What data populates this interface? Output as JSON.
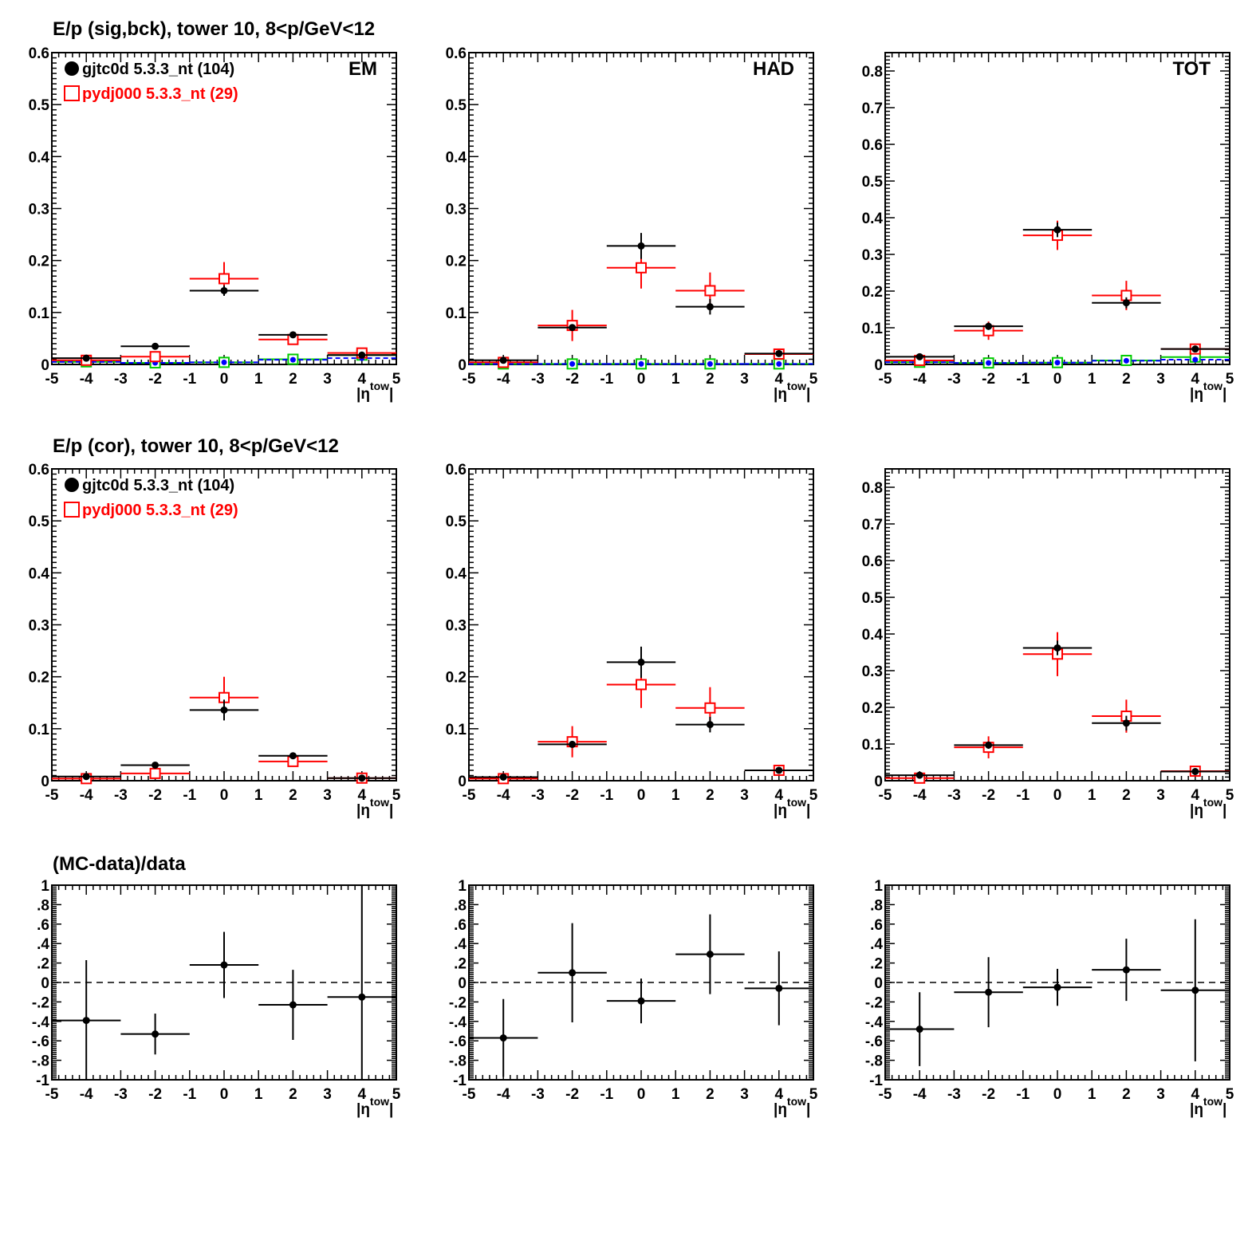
{
  "rows": [
    {
      "title": "E/p (sig,bck), tower 10,  8<p/GeV<12"
    },
    {
      "title": "E/p (cor), tower 10,  8<p/GeV<12"
    },
    {
      "title": "(MC-data)/data"
    }
  ],
  "legend": [
    {
      "label": "gjtc0d 5.3.3_nt (104)",
      "color": "#000000",
      "marker": "filled-circle"
    },
    {
      "label": "pydj000 5.3.3_nt (29)",
      "color": "#ff0000",
      "marker": "open-square"
    }
  ],
  "x_axis_label": {
    "base": "|η",
    "sup": "tow",
    "close": "|"
  },
  "chart_data": [
    {
      "type": "scatter",
      "row": 0,
      "col": 0,
      "label": "EM",
      "xlim": [
        -5,
        5
      ],
      "ylim": [
        0,
        0.6
      ],
      "x_ticks": [
        -5,
        -4,
        -3,
        -2,
        -1,
        0,
        1,
        2,
        3,
        4,
        5
      ],
      "y_ticks": [
        0,
        0.1,
        0.2,
        0.3,
        0.4,
        0.5,
        0.6
      ],
      "series": [
        {
          "name": "gjtc0d 5.3.3_nt (104)",
          "color": "#000000",
          "marker": "dot",
          "points": [
            {
              "x": -4,
              "y": 0.012,
              "e": 0.003
            },
            {
              "x": -2,
              "y": 0.035,
              "e": 0.003
            },
            {
              "x": 0,
              "y": 0.142,
              "e": 0.01
            },
            {
              "x": 2,
              "y": 0.057,
              "e": 0.005
            },
            {
              "x": 4,
              "y": 0.018,
              "e": 0.003
            }
          ]
        },
        {
          "name": "pydj000 5.3.3_nt (29)",
          "color": "#ff0000",
          "marker": "open-square",
          "points": [
            {
              "x": -4,
              "y": 0.008,
              "e": 0.004
            },
            {
              "x": -2,
              "y": 0.015,
              "e": 0.005
            },
            {
              "x": 0,
              "y": 0.165,
              "e": 0.032
            },
            {
              "x": 2,
              "y": 0.048,
              "e": 0.01
            },
            {
              "x": 4,
              "y": 0.022,
              "e": 0.006
            }
          ]
        },
        {
          "color": "#0000ff",
          "marker": "dot",
          "line": "dashed",
          "points": [
            {
              "x": -4,
              "y": 0.005,
              "e": 0
            },
            {
              "x": -2,
              "y": 0.003,
              "e": 0
            },
            {
              "x": 0,
              "y": 0.004,
              "e": 0
            },
            {
              "x": 2,
              "y": 0.009,
              "e": 0
            },
            {
              "x": 4,
              "y": 0.012,
              "e": 0
            }
          ]
        },
        {
          "color": "#00cc00",
          "marker": "open-square",
          "points": [
            {
              "x": -4,
              "y": 0.005,
              "e": 0
            },
            {
              "x": -2,
              "y": 0.003,
              "e": 0
            },
            {
              "x": 0,
              "y": 0.004,
              "e": 0
            },
            {
              "x": 2,
              "y": 0.01,
              "e": 0
            },
            {
              "x": 4,
              "y": 0.018,
              "e": 0
            }
          ]
        }
      ]
    },
    {
      "type": "scatter",
      "row": 0,
      "col": 1,
      "label": "HAD",
      "xlim": [
        -5,
        5
      ],
      "ylim": [
        0,
        0.6
      ],
      "x_ticks": [
        -5,
        -4,
        -3,
        -2,
        -1,
        0,
        1,
        2,
        3,
        4,
        5
      ],
      "y_ticks": [
        0,
        0.1,
        0.2,
        0.3,
        0.4,
        0.5,
        0.6
      ],
      "series": [
        {
          "name": "gjtc0d 5.3.3_nt (104)",
          "color": "#000000",
          "marker": "dot",
          "points": [
            {
              "x": -4,
              "y": 0.008,
              "e": 0.003
            },
            {
              "x": -2,
              "y": 0.071,
              "e": 0.006
            },
            {
              "x": 0,
              "y": 0.228,
              "e": 0.025
            },
            {
              "x": 2,
              "y": 0.111,
              "e": 0.015
            },
            {
              "x": 4,
              "y": 0.021,
              "e": 0.004
            }
          ]
        },
        {
          "name": "pydj000 5.3.3_nt (29)",
          "color": "#ff0000",
          "marker": "open-square",
          "points": [
            {
              "x": -4,
              "y": 0.004,
              "e": 0.003
            },
            {
              "x": -2,
              "y": 0.075,
              "e": 0.03
            },
            {
              "x": 0,
              "y": 0.186,
              "e": 0.04
            },
            {
              "x": 2,
              "y": 0.142,
              "e": 0.035
            },
            {
              "x": 4,
              "y": 0.02,
              "e": 0.005
            }
          ]
        },
        {
          "color": "#0000ff",
          "marker": "dot",
          "line": "dashed",
          "points": [
            {
              "x": -4,
              "y": 0.001,
              "e": 0
            },
            {
              "x": -2,
              "y": 0.001,
              "e": 0
            },
            {
              "x": 0,
              "y": 0.001,
              "e": 0
            },
            {
              "x": 2,
              "y": 0.001,
              "e": 0
            },
            {
              "x": 4,
              "y": 0.001,
              "e": 0
            }
          ]
        },
        {
          "color": "#00cc00",
          "marker": "open-square",
          "points": [
            {
              "x": -4,
              "y": 0.001,
              "e": 0
            },
            {
              "x": -2,
              "y": 0.001,
              "e": 0
            },
            {
              "x": 0,
              "y": 0.001,
              "e": 0
            },
            {
              "x": 2,
              "y": 0.001,
              "e": 0
            },
            {
              "x": 4,
              "y": 0.001,
              "e": 0
            }
          ]
        }
      ]
    },
    {
      "type": "scatter",
      "row": 0,
      "col": 2,
      "label": "TOT",
      "xlim": [
        -5,
        5
      ],
      "ylim": [
        0,
        0.85
      ],
      "x_ticks": [
        -5,
        -4,
        -3,
        -2,
        -1,
        0,
        1,
        2,
        3,
        4,
        5
      ],
      "y_ticks": [
        0,
        0.1,
        0.2,
        0.3,
        0.4,
        0.5,
        0.6,
        0.7,
        0.8
      ],
      "series": [
        {
          "name": "gjtc0d 5.3.3_nt (104)",
          "color": "#000000",
          "marker": "dot",
          "points": [
            {
              "x": -4,
              "y": 0.021,
              "e": 0.004
            },
            {
              "x": -2,
              "y": 0.104,
              "e": 0.01
            },
            {
              "x": 0,
              "y": 0.367,
              "e": 0.02
            },
            {
              "x": 2,
              "y": 0.168,
              "e": 0.015
            },
            {
              "x": 4,
              "y": 0.042,
              "e": 0.006
            }
          ]
        },
        {
          "name": "pydj000 5.3.3_nt (29)",
          "color": "#ff0000",
          "marker": "open-square",
          "points": [
            {
              "x": -4,
              "y": 0.011,
              "e": 0.005
            },
            {
              "x": -2,
              "y": 0.092,
              "e": 0.025
            },
            {
              "x": 0,
              "y": 0.352,
              "e": 0.04
            },
            {
              "x": 2,
              "y": 0.188,
              "e": 0.04
            },
            {
              "x": 4,
              "y": 0.042,
              "e": 0.01
            }
          ]
        },
        {
          "color": "#0000ff",
          "marker": "dot",
          "line": "dashed",
          "points": [
            {
              "x": -4,
              "y": 0.006,
              "e": 0
            },
            {
              "x": -2,
              "y": 0.004,
              "e": 0
            },
            {
              "x": 0,
              "y": 0.005,
              "e": 0
            },
            {
              "x": 2,
              "y": 0.01,
              "e": 0
            },
            {
              "x": 4,
              "y": 0.013,
              "e": 0
            }
          ]
        },
        {
          "color": "#00cc00",
          "marker": "open-square",
          "points": [
            {
              "x": -4,
              "y": 0.006,
              "e": 0
            },
            {
              "x": -2,
              "y": 0.004,
              "e": 0
            },
            {
              "x": 0,
              "y": 0.005,
              "e": 0
            },
            {
              "x": 2,
              "y": 0.011,
              "e": 0
            },
            {
              "x": 4,
              "y": 0.02,
              "e": 0
            }
          ]
        }
      ]
    },
    {
      "type": "scatter",
      "row": 1,
      "col": 0,
      "label": "",
      "xlim": [
        -5,
        5
      ],
      "ylim": [
        0,
        0.6
      ],
      "x_ticks": [
        -5,
        -4,
        -3,
        -2,
        -1,
        0,
        1,
        2,
        3,
        4,
        5
      ],
      "y_ticks": [
        0,
        0.1,
        0.2,
        0.3,
        0.4,
        0.5,
        0.6
      ],
      "series": [
        {
          "name": "gjtc0d 5.3.3_nt (104)",
          "color": "#000000",
          "marker": "dot",
          "points": [
            {
              "x": -4,
              "y": 0.008,
              "e": 0.003
            },
            {
              "x": -2,
              "y": 0.03,
              "e": 0.003
            },
            {
              "x": 0,
              "y": 0.136,
              "e": 0.02
            },
            {
              "x": 2,
              "y": 0.048,
              "e": 0.005
            },
            {
              "x": 4,
              "y": 0.005,
              "e": 0.003
            }
          ]
        },
        {
          "name": "pydj000 5.3.3_nt (29)",
          "color": "#ff0000",
          "marker": "open-square",
          "points": [
            {
              "x": -4,
              "y": 0.004,
              "e": 0.005
            },
            {
              "x": -2,
              "y": 0.014,
              "e": 0.006
            },
            {
              "x": 0,
              "y": 0.16,
              "e": 0.04
            },
            {
              "x": 2,
              "y": 0.037,
              "e": 0.01
            },
            {
              "x": 4,
              "y": 0.005,
              "e": 0.007
            }
          ]
        }
      ]
    },
    {
      "type": "scatter",
      "row": 1,
      "col": 1,
      "label": "",
      "xlim": [
        -5,
        5
      ],
      "ylim": [
        0,
        0.6
      ],
      "x_ticks": [
        -5,
        -4,
        -3,
        -2,
        -1,
        0,
        1,
        2,
        3,
        4,
        5
      ],
      "y_ticks": [
        0,
        0.1,
        0.2,
        0.3,
        0.4,
        0.5,
        0.6
      ],
      "series": [
        {
          "name": "gjtc0d 5.3.3_nt (104)",
          "color": "#000000",
          "marker": "dot",
          "points": [
            {
              "x": -4,
              "y": 0.007,
              "e": 0.003
            },
            {
              "x": -2,
              "y": 0.07,
              "e": 0.006
            },
            {
              "x": 0,
              "y": 0.228,
              "e": 0.03
            },
            {
              "x": 2,
              "y": 0.108,
              "e": 0.015
            },
            {
              "x": 4,
              "y": 0.02,
              "e": 0.004
            }
          ]
        },
        {
          "name": "pydj000 5.3.3_nt (29)",
          "color": "#ff0000",
          "marker": "open-square",
          "points": [
            {
              "x": -4,
              "y": 0.004,
              "e": 0.003
            },
            {
              "x": -2,
              "y": 0.075,
              "e": 0.03
            },
            {
              "x": 0,
              "y": 0.185,
              "e": 0.045
            },
            {
              "x": 2,
              "y": 0.14,
              "e": 0.04
            },
            {
              "x": 4,
              "y": 0.02,
              "e": 0.005
            }
          ]
        }
      ]
    },
    {
      "type": "scatter",
      "row": 1,
      "col": 2,
      "label": "",
      "xlim": [
        -5,
        5
      ],
      "ylim": [
        0,
        0.85
      ],
      "x_ticks": [
        -5,
        -4,
        -3,
        -2,
        -1,
        0,
        1,
        2,
        3,
        4,
        5
      ],
      "y_ticks": [
        0,
        0.1,
        0.2,
        0.3,
        0.4,
        0.5,
        0.6,
        0.7,
        0.8
      ],
      "series": [
        {
          "name": "gjtc0d 5.3.3_nt (104)",
          "color": "#000000",
          "marker": "dot",
          "points": [
            {
              "x": -4,
              "y": 0.015,
              "e": 0.004
            },
            {
              "x": -2,
              "y": 0.097,
              "e": 0.01
            },
            {
              "x": 0,
              "y": 0.362,
              "e": 0.02
            },
            {
              "x": 2,
              "y": 0.157,
              "e": 0.02
            },
            {
              "x": 4,
              "y": 0.025,
              "e": 0.006
            }
          ]
        },
        {
          "name": "pydj000 5.3.3_nt (29)",
          "color": "#ff0000",
          "marker": "open-square",
          "points": [
            {
              "x": -4,
              "y": 0.007,
              "e": 0.005
            },
            {
              "x": -2,
              "y": 0.091,
              "e": 0.03
            },
            {
              "x": 0,
              "y": 0.345,
              "e": 0.06
            },
            {
              "x": 2,
              "y": 0.176,
              "e": 0.045
            },
            {
              "x": 4,
              "y": 0.026,
              "e": 0.01
            }
          ]
        }
      ]
    },
    {
      "type": "scatter",
      "row": 2,
      "col": 0,
      "label": "",
      "xlim": [
        -5,
        5
      ],
      "ylim": [
        -1,
        1
      ],
      "reference_line": 0,
      "x_ticks": [
        -5,
        -4,
        -3,
        -2,
        -1,
        0,
        1,
        2,
        3,
        4,
        5
      ],
      "y_ticks": [
        -1,
        -0.8,
        -0.6,
        -0.4,
        -0.2,
        0,
        0.2,
        0.4,
        0.6,
        0.8,
        1
      ],
      "series": [
        {
          "color": "#000000",
          "marker": "dot",
          "points": [
            {
              "x": -4,
              "y": -0.39,
              "e": 0.62
            },
            {
              "x": -2,
              "y": -0.53,
              "e": 0.21
            },
            {
              "x": 0,
              "y": 0.18,
              "e": 0.34
            },
            {
              "x": 2,
              "y": -0.23,
              "e": 0.36
            },
            {
              "x": 4,
              "y": -0.15,
              "e": 1.25
            }
          ]
        }
      ]
    },
    {
      "type": "scatter",
      "row": 2,
      "col": 1,
      "label": "",
      "xlim": [
        -5,
        5
      ],
      "ylim": [
        -1,
        1
      ],
      "reference_line": 0,
      "x_ticks": [
        -5,
        -4,
        -3,
        -2,
        -1,
        0,
        1,
        2,
        3,
        4,
        5
      ],
      "y_ticks": [
        -1,
        -0.8,
        -0.6,
        -0.4,
        -0.2,
        0,
        0.2,
        0.4,
        0.6,
        0.8,
        1
      ],
      "series": [
        {
          "color": "#000000",
          "marker": "dot",
          "points": [
            {
              "x": -4,
              "y": -0.57,
              "e": 0.4
            },
            {
              "x": -2,
              "y": 0.1,
              "e": 0.51
            },
            {
              "x": 0,
              "y": -0.19,
              "e": 0.23
            },
            {
              "x": 2,
              "y": 0.29,
              "e": 0.41
            },
            {
              "x": 4,
              "y": -0.06,
              "e": 0.38
            }
          ]
        }
      ]
    },
    {
      "type": "scatter",
      "row": 2,
      "col": 2,
      "label": "",
      "xlim": [
        -5,
        5
      ],
      "ylim": [
        -1,
        1
      ],
      "reference_line": 0,
      "x_ticks": [
        -5,
        -4,
        -3,
        -2,
        -1,
        0,
        1,
        2,
        3,
        4,
        5
      ],
      "y_ticks": [
        -1,
        -0.8,
        -0.6,
        -0.4,
        -0.2,
        0,
        0.2,
        0.4,
        0.6,
        0.8,
        1
      ],
      "series": [
        {
          "color": "#000000",
          "marker": "dot",
          "points": [
            {
              "x": -4,
              "y": -0.48,
              "e": 0.38
            },
            {
              "x": -2,
              "y": -0.1,
              "e": 0.36
            },
            {
              "x": 0,
              "y": -0.05,
              "e": 0.19
            },
            {
              "x": 2,
              "y": 0.13,
              "e": 0.32
            },
            {
              "x": 4,
              "y": -0.08,
              "e": 0.73
            }
          ]
        }
      ]
    }
  ]
}
